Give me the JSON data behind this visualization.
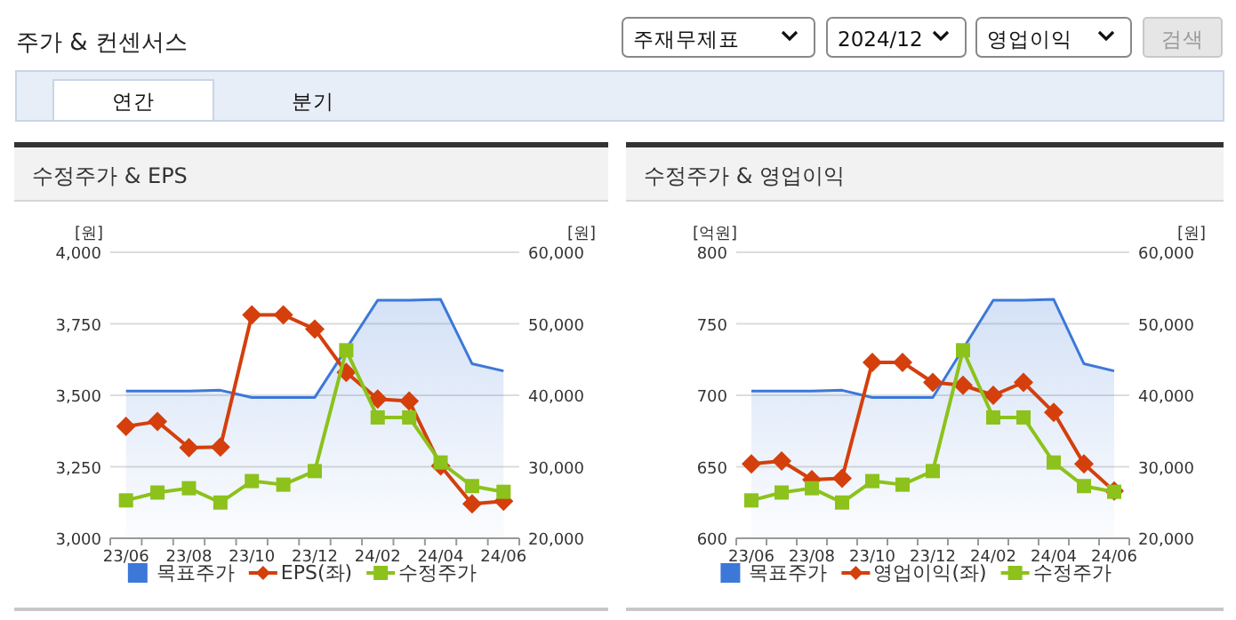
{
  "chart_data": [
    {
      "type": "line",
      "title": "수정주가 & EPS",
      "ylabel": "[원]",
      "y2label": "[원]",
      "annotations": [
        "주가 & 컨센서스",
        "주재무제표",
        "2024/12",
        "영업이익",
        "검색",
        "연간",
        "분기"
      ],
      "categories": [
        "23/06",
        null,
        "23/08",
        null,
        "23/10",
        null,
        "23/12",
        null,
        "24/02",
        null,
        "24/04",
        null,
        "24/06"
      ],
      "ylim": [
        3000,
        4000
      ],
      "yticks": [
        {
          "value": 3000,
          "label": "3,000"
        },
        {
          "value": 3250,
          "label": "3,250"
        },
        {
          "value": 3500,
          "label": "3,500"
        },
        {
          "value": 3750,
          "label": "3,750"
        },
        {
          "value": 4000,
          "label": "4,000"
        }
      ],
      "y2lim": [
        20000,
        60000
      ],
      "y2ticks": [
        {
          "value": 20000,
          "label": "20,000"
        },
        {
          "value": 30000,
          "label": "30,000"
        },
        {
          "value": 40000,
          "label": "40,000"
        },
        {
          "value": 50000,
          "label": "50,000"
        },
        {
          "value": 60000,
          "label": "60,000"
        }
      ],
      "grid": "y",
      "legend": "bottom",
      "series": [
        {
          "name": "목표주가",
          "type": "area",
          "axis": "y2",
          "color": "#3c78d8",
          "marker": "none",
          "values": [
            40600,
            40600,
            40600,
            40700,
            39700,
            39700,
            39700,
            46500,
            53300,
            53300,
            53400,
            44400,
            43400
          ]
        },
        {
          "name": "EPS(좌)",
          "type": "line",
          "color": "#d43f0c",
          "marker": "diamond",
          "values": [
            3391,
            3408,
            3317,
            3319,
            3781,
            3781,
            3731,
            3580,
            3487,
            3480,
            3253,
            3120,
            3130
          ]
        },
        {
          "name": "수정주가",
          "type": "line",
          "axis": "y2",
          "color": "#8cc21b",
          "marker": "square",
          "values": [
            25300,
            26400,
            27000,
            25000,
            28000,
            27500,
            29400,
            46300,
            36900,
            36900,
            30600,
            27300,
            26500
          ]
        }
      ]
    },
    {
      "type": "line",
      "title": "수정주가 & 영업이익",
      "ylabel": "[억원]",
      "y2label": "[원]",
      "categories": [
        "23/06",
        null,
        "23/08",
        null,
        "23/10",
        null,
        "23/12",
        null,
        "24/02",
        null,
        "24/04",
        null,
        "24/06"
      ],
      "ylim": [
        600,
        800
      ],
      "yticks": [
        600,
        650,
        700,
        750,
        800
      ],
      "y2lim": [
        20000,
        60000
      ],
      "y2ticks": [
        {
          "value": 20000,
          "label": "20,000"
        },
        {
          "value": 30000,
          "label": "30,000"
        },
        {
          "value": 40000,
          "label": "40,000"
        },
        {
          "value": 50000,
          "label": "50,000"
        },
        {
          "value": 60000,
          "label": "60,000"
        }
      ],
      "grid": "y",
      "legend": "bottom",
      "series": [
        {
          "name": "목표주가",
          "type": "area",
          "axis": "y2",
          "color": "#3c78d8",
          "marker": "none",
          "values": [
            40600,
            40600,
            40600,
            40700,
            39700,
            39700,
            39700,
            46500,
            53300,
            53300,
            53400,
            44400,
            43400
          ]
        },
        {
          "name": "영업이익(좌)",
          "type": "line",
          "color": "#d43f0c",
          "marker": "diamond",
          "values": [
            652,
            654,
            641,
            642,
            723,
            723,
            709,
            707,
            700,
            709,
            688,
            652,
            633
          ]
        },
        {
          "name": "수정주가",
          "type": "line",
          "axis": "y2",
          "color": "#8cc21b",
          "marker": "square",
          "values": [
            25300,
            26400,
            27000,
            25000,
            28000,
            27500,
            29400,
            46300,
            36900,
            36900,
            30600,
            27300,
            26500
          ]
        }
      ]
    }
  ]
}
